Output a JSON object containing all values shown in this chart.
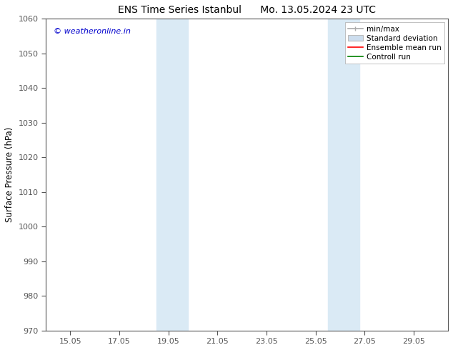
{
  "title_left": "ENS Time Series Istanbul",
  "title_right": "Mo. 13.05.2024 23 UTC",
  "ylabel": "Surface Pressure (hPa)",
  "ylim": [
    970,
    1060
  ],
  "yticks": [
    970,
    980,
    990,
    1000,
    1010,
    1020,
    1030,
    1040,
    1050,
    1060
  ],
  "xlim_start": 14.05,
  "xlim_end": 30.45,
  "xtick_labels": [
    "15.05",
    "17.05",
    "19.05",
    "21.05",
    "23.05",
    "25.05",
    "27.05",
    "29.05"
  ],
  "xtick_positions": [
    15.05,
    17.05,
    19.05,
    21.05,
    23.05,
    25.05,
    27.05,
    29.05
  ],
  "shaded_bands": [
    {
      "x_start": 18.55,
      "x_end": 19.85,
      "color": "#daeaf5",
      "alpha": 1.0
    },
    {
      "x_start": 25.55,
      "x_end": 26.85,
      "color": "#daeaf5",
      "alpha": 1.0
    }
  ],
  "watermark_text": "© weatheronline.in",
  "watermark_color": "#0000cc",
  "legend_entries": [
    {
      "label": "min/max",
      "color": "#aaaaaa",
      "lw": 1.2,
      "style": "minmax"
    },
    {
      "label": "Standard deviation",
      "color": "#ccddee",
      "lw": 6,
      "style": "box"
    },
    {
      "label": "Ensemble mean run",
      "color": "red",
      "lw": 1.2,
      "style": "line"
    },
    {
      "label": "Controll run",
      "color": "green",
      "lw": 1.2,
      "style": "line"
    }
  ],
  "bg_color": "#ffffff",
  "spine_color": "#555555",
  "title_fontsize": 10,
  "label_fontsize": 8.5,
  "tick_fontsize": 8,
  "legend_fontsize": 7.5
}
